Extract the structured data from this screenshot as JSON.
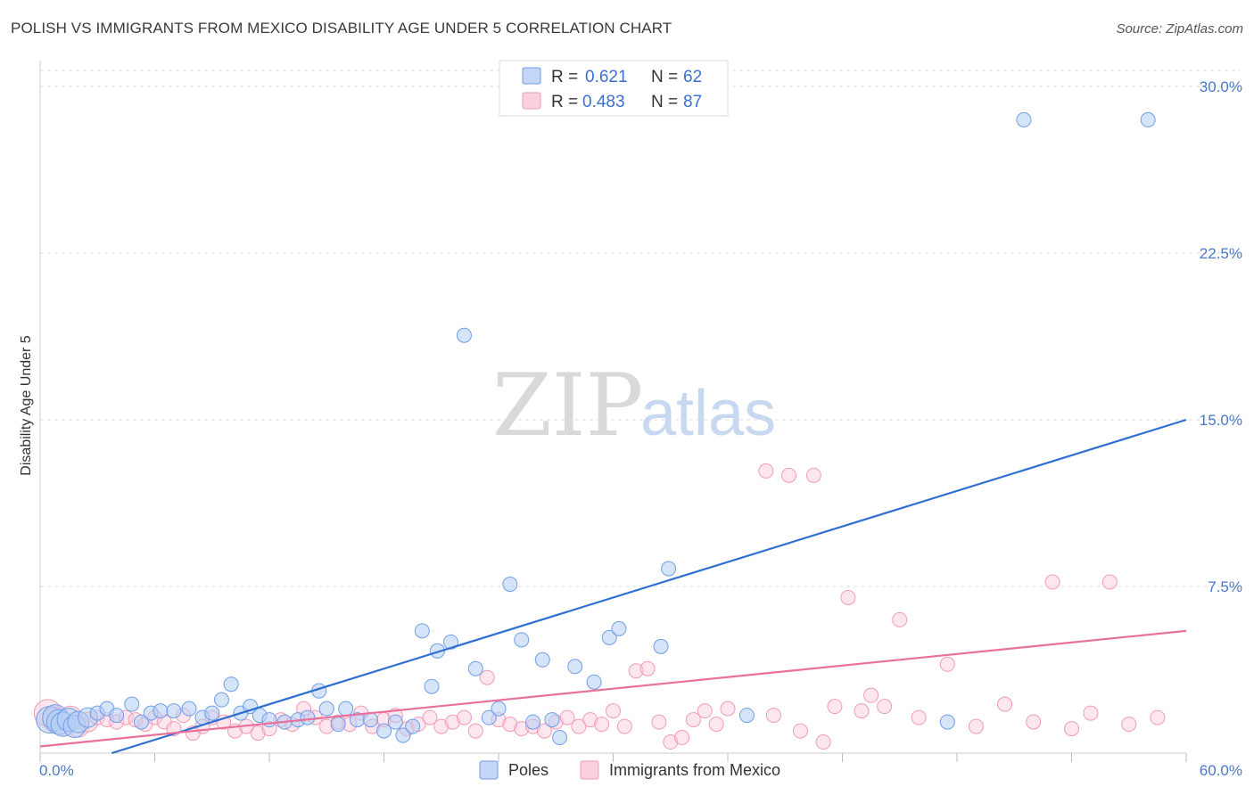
{
  "title": "POLISH VS IMMIGRANTS FROM MEXICO DISABILITY AGE UNDER 5 CORRELATION CHART",
  "source": "Source: ZipAtlas.com",
  "watermark": {
    "zip": "ZIP",
    "atlas": "atlas"
  },
  "colors": {
    "poles": "#6f9ee8",
    "mexico": "#f29bb7",
    "poles_line": "#2f6fd1",
    "mexico_line": "#e8709a",
    "tick": "#4a78c8"
  },
  "chart_data": {
    "type": "scatter",
    "title": "POLISH VS IMMIGRANTS FROM MEXICO DISABILITY AGE UNDER 5 CORRELATION CHART",
    "xlabel": "",
    "ylabel": "Disability Age Under 5",
    "xlim": [
      0,
      60
    ],
    "ylim": [
      0,
      31.5
    ],
    "yticks": [
      {
        "value": 7.5,
        "label": "7.5%"
      },
      {
        "value": 15,
        "label": "15.0%"
      },
      {
        "value": 22.5,
        "label": "22.5%"
      },
      {
        "value": 30,
        "label": "30.0%"
      }
    ],
    "xticks": [
      {
        "value": 0,
        "label": "0.0%"
      },
      {
        "value": 60,
        "label": "60.0%"
      }
    ],
    "legend": {
      "r_label": "R =",
      "n_label": "N =",
      "entries": [
        {
          "series": "Poles",
          "r": "0.621",
          "n": "62"
        },
        {
          "series": "Immigrants from Mexico",
          "r": "0.483",
          "n": "87"
        }
      ]
    },
    "series": [
      {
        "name": "Poles",
        "trendline": [
          [
            0,
            -1.0
          ],
          [
            60,
            15.0
          ]
        ],
        "points": [
          [
            0.5,
            1.5
          ],
          [
            0.8,
            1.6
          ],
          [
            1.0,
            1.4
          ],
          [
            1.2,
            1.3
          ],
          [
            1.5,
            1.5
          ],
          [
            1.8,
            1.2
          ],
          [
            2.0,
            1.4
          ],
          [
            2.5,
            1.6
          ],
          [
            3.0,
            1.8
          ],
          [
            3.5,
            2.0
          ],
          [
            4.0,
            1.7
          ],
          [
            4.8,
            2.2
          ],
          [
            5.3,
            1.4
          ],
          [
            5.8,
            1.8
          ],
          [
            6.3,
            1.9
          ],
          [
            7.0,
            1.9
          ],
          [
            7.8,
            2.0
          ],
          [
            8.5,
            1.6
          ],
          [
            9.0,
            1.8
          ],
          [
            9.5,
            2.4
          ],
          [
            10.0,
            3.1
          ],
          [
            10.5,
            1.8
          ],
          [
            11.0,
            2.1
          ],
          [
            11.5,
            1.7
          ],
          [
            12.0,
            1.5
          ],
          [
            12.8,
            1.4
          ],
          [
            13.5,
            1.5
          ],
          [
            14.0,
            1.6
          ],
          [
            14.6,
            2.8
          ],
          [
            15.0,
            2.0
          ],
          [
            15.6,
            1.3
          ],
          [
            16.0,
            2.0
          ],
          [
            16.6,
            1.5
          ],
          [
            17.3,
            1.5
          ],
          [
            18.0,
            1.0
          ],
          [
            18.6,
            1.4
          ],
          [
            19.0,
            0.8
          ],
          [
            19.5,
            1.2
          ],
          [
            20.0,
            5.5
          ],
          [
            20.5,
            3.0
          ],
          [
            20.8,
            4.6
          ],
          [
            21.5,
            5.0
          ],
          [
            22.2,
            18.8
          ],
          [
            22.8,
            3.8
          ],
          [
            23.5,
            1.6
          ],
          [
            24.0,
            2.0
          ],
          [
            24.6,
            7.6
          ],
          [
            25.2,
            5.1
          ],
          [
            25.8,
            1.4
          ],
          [
            26.3,
            4.2
          ],
          [
            26.8,
            1.5
          ],
          [
            27.2,
            0.7
          ],
          [
            28.0,
            3.9
          ],
          [
            29.0,
            3.2
          ],
          [
            29.8,
            5.2
          ],
          [
            30.3,
            5.6
          ],
          [
            32.5,
            4.8
          ],
          [
            32.9,
            8.3
          ],
          [
            37.0,
            1.7
          ],
          [
            47.5,
            1.4
          ],
          [
            51.5,
            28.5
          ],
          [
            58.0,
            28.5
          ]
        ]
      },
      {
        "name": "Immigrants from Mexico",
        "trendline": [
          [
            0,
            0.3
          ],
          [
            60,
            5.5
          ]
        ],
        "points": [
          [
            0.4,
            1.8
          ],
          [
            0.8,
            1.5
          ],
          [
            1.2,
            1.3
          ],
          [
            1.6,
            1.6
          ],
          [
            2.0,
            1.2
          ],
          [
            2.5,
            1.4
          ],
          [
            3.0,
            1.6
          ],
          [
            3.5,
            1.5
          ],
          [
            4.0,
            1.4
          ],
          [
            4.5,
            1.6
          ],
          [
            5.0,
            1.5
          ],
          [
            5.5,
            1.3
          ],
          [
            6.0,
            1.6
          ],
          [
            6.5,
            1.4
          ],
          [
            7.0,
            1.1
          ],
          [
            7.5,
            1.7
          ],
          [
            8.0,
            0.9
          ],
          [
            8.5,
            1.2
          ],
          [
            9.0,
            1.6
          ],
          [
            9.6,
            1.4
          ],
          [
            10.2,
            1.0
          ],
          [
            10.8,
            1.2
          ],
          [
            11.4,
            0.9
          ],
          [
            12.0,
            1.1
          ],
          [
            12.6,
            1.5
          ],
          [
            13.2,
            1.3
          ],
          [
            13.8,
            2.0
          ],
          [
            14.4,
            1.6
          ],
          [
            15.0,
            1.2
          ],
          [
            15.6,
            1.4
          ],
          [
            16.2,
            1.3
          ],
          [
            16.8,
            1.8
          ],
          [
            17.4,
            1.2
          ],
          [
            18.0,
            1.5
          ],
          [
            18.6,
            1.7
          ],
          [
            19.2,
            1.1
          ],
          [
            19.8,
            1.3
          ],
          [
            20.4,
            1.6
          ],
          [
            21.0,
            1.2
          ],
          [
            21.6,
            1.4
          ],
          [
            22.2,
            1.6
          ],
          [
            22.8,
            1.0
          ],
          [
            23.4,
            3.4
          ],
          [
            24.0,
            1.5
          ],
          [
            24.6,
            1.3
          ],
          [
            25.2,
            1.1
          ],
          [
            25.8,
            1.2
          ],
          [
            26.4,
            1.0
          ],
          [
            27.0,
            1.4
          ],
          [
            27.6,
            1.6
          ],
          [
            28.2,
            1.2
          ],
          [
            28.8,
            1.5
          ],
          [
            29.4,
            1.3
          ],
          [
            30.0,
            1.9
          ],
          [
            30.6,
            1.2
          ],
          [
            31.2,
            3.7
          ],
          [
            31.8,
            3.8
          ],
          [
            32.4,
            1.4
          ],
          [
            33.0,
            0.5
          ],
          [
            33.6,
            0.7
          ],
          [
            34.2,
            1.5
          ],
          [
            34.8,
            1.9
          ],
          [
            35.4,
            1.3
          ],
          [
            36.0,
            2.0
          ],
          [
            38.0,
            12.7
          ],
          [
            38.4,
            1.7
          ],
          [
            39.2,
            12.5
          ],
          [
            39.8,
            1.0
          ],
          [
            40.5,
            12.5
          ],
          [
            41.0,
            0.5
          ],
          [
            41.6,
            2.1
          ],
          [
            42.3,
            7.0
          ],
          [
            43.0,
            1.9
          ],
          [
            43.5,
            2.6
          ],
          [
            44.2,
            2.1
          ],
          [
            45.0,
            6.0
          ],
          [
            46.0,
            1.6
          ],
          [
            47.5,
            4.0
          ],
          [
            49.0,
            1.2
          ],
          [
            50.5,
            2.2
          ],
          [
            52.0,
            1.4
          ],
          [
            53.0,
            7.7
          ],
          [
            54.0,
            1.1
          ],
          [
            55.0,
            1.8
          ],
          [
            56.0,
            7.7
          ],
          [
            57.0,
            1.3
          ],
          [
            58.5,
            1.6
          ]
        ]
      }
    ]
  }
}
